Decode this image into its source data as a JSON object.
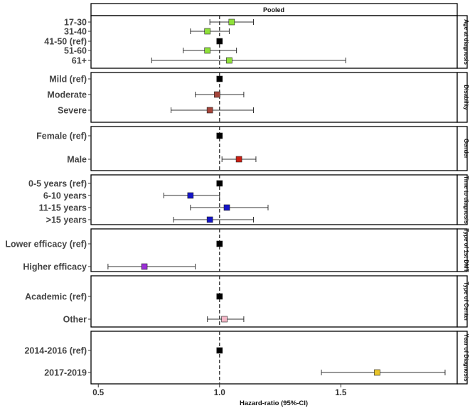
{
  "chart_data": {
    "type": "forest",
    "title": "Pooled",
    "xlabel": "Hazard-ratio (95%-CI)",
    "xlim": [
      0.47,
      1.98
    ],
    "xticks": [
      "0.5",
      "1.0",
      "1.5"
    ],
    "reference_line": 1.0,
    "grid": false,
    "groups": [
      {
        "name": "Age at diagnosis",
        "color": "#8fe03a",
        "rows": [
          {
            "label": "17-30",
            "hr": 1.05,
            "lo": 0.96,
            "hi": 1.14
          },
          {
            "label": "31-40",
            "hr": 0.95,
            "lo": 0.88,
            "hi": 1.04
          },
          {
            "label": "41-50 (ref)",
            "hr": 1.0,
            "lo": null,
            "hi": null,
            "ref": true
          },
          {
            "label": "51-60",
            "hr": 0.95,
            "lo": 0.85,
            "hi": 1.07
          },
          {
            "label": "61+",
            "hr": 1.04,
            "lo": 0.72,
            "hi": 1.52
          }
        ]
      },
      {
        "name": "Disability",
        "color": "#a5443a",
        "rows": [
          {
            "label": "Mild (ref)",
            "hr": 1.0,
            "lo": null,
            "hi": null,
            "ref": true
          },
          {
            "label": "Moderate",
            "hr": 0.99,
            "lo": 0.9,
            "hi": 1.1
          },
          {
            "label": "Severe",
            "hr": 0.96,
            "lo": 0.8,
            "hi": 1.14
          }
        ]
      },
      {
        "name": "Gender",
        "color": "#cc1e12",
        "rows": [
          {
            "label": "Female (ref)",
            "hr": 1.0,
            "lo": null,
            "hi": null,
            "ref": true
          },
          {
            "label": "Male",
            "hr": 1.08,
            "lo": 1.01,
            "hi": 1.15
          }
        ]
      },
      {
        "name": "Time to diagnosis",
        "color": "#1414c8",
        "rows": [
          {
            "label": "0-5 years (ref)",
            "hr": 1.0,
            "lo": null,
            "hi": null,
            "ref": true
          },
          {
            "label": "6-10 years",
            "hr": 0.88,
            "lo": 0.77,
            "hi": 1.0
          },
          {
            "label": "11-15 years",
            "hr": 1.03,
            "lo": 0.88,
            "hi": 1.2
          },
          {
            "label": ">15 years",
            "hr": 0.96,
            "lo": 0.81,
            "hi": 1.14
          }
        ]
      },
      {
        "name": "Type of 1st DMT",
        "color": "#9b2fd6",
        "rows": [
          {
            "label": "Lower efficacy (ref)",
            "hr": 1.0,
            "lo": null,
            "hi": null,
            "ref": true
          },
          {
            "label": "Higher efficacy",
            "hr": 0.69,
            "lo": 0.54,
            "hi": 0.9
          }
        ]
      },
      {
        "name": "Type of Center",
        "color": "#f2b6c6",
        "rows": [
          {
            "label": "Academic (ref)",
            "hr": 1.0,
            "lo": null,
            "hi": null,
            "ref": true
          },
          {
            "label": "Other",
            "hr": 1.02,
            "lo": 0.95,
            "hi": 1.1
          }
        ]
      },
      {
        "name": "Year of Diagnosis",
        "color": "#e8c42a",
        "rows": [
          {
            "label": "2014-2016 (ref)",
            "hr": 1.0,
            "lo": null,
            "hi": null,
            "ref": true
          },
          {
            "label": "2017-2019",
            "hr": 1.65,
            "lo": 1.42,
            "hi": 1.93
          }
        ]
      }
    ]
  }
}
